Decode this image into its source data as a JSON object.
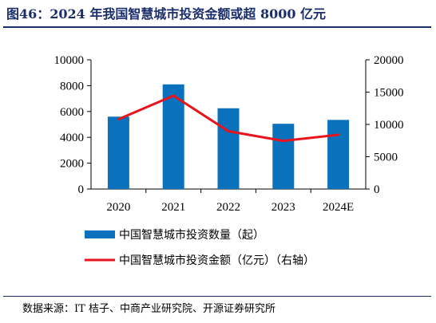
{
  "title": "图46：2024 年我国智慧城市投资金额或超 8000 亿元",
  "source": "数据来源：IT 桔子、中商产业研究院、开源证券研究所",
  "colors": {
    "bar": "#0a72bd",
    "line": "#e8131b",
    "title": "#1a2e6b"
  },
  "chart_data": {
    "type": "bar",
    "categories": [
      "2020",
      "2021",
      "2022",
      "2023",
      "2024E"
    ],
    "series": [
      {
        "name": "中国智慧城市投资数量（起）",
        "type": "bar",
        "axis": "left",
        "values": [
          5600,
          8100,
          6250,
          5050,
          5350
        ]
      },
      {
        "name": "中国智慧城市投资金额（亿元）（右轴）",
        "type": "line",
        "axis": "right",
        "values": [
          10800,
          14450,
          8950,
          7450,
          8400
        ]
      }
    ],
    "ylim_left": [
      0,
      10000
    ],
    "yticks_left": [
      0,
      2000,
      4000,
      6000,
      8000,
      10000
    ],
    "ylim_right": [
      0,
      20000
    ],
    "yticks_right": [
      0,
      5000,
      10000,
      15000,
      20000
    ],
    "grid": false,
    "legend": "bottom"
  }
}
